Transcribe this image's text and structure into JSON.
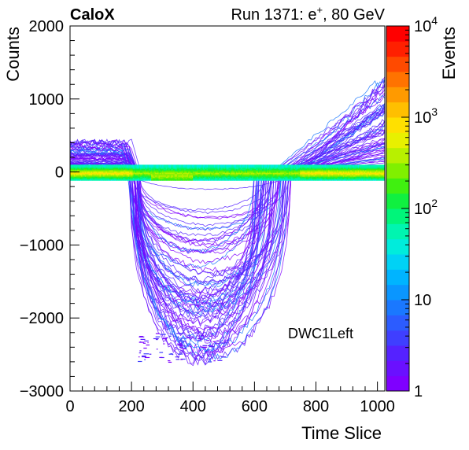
{
  "chart_data": {
    "type": "heatmap",
    "experiment_label": "CaloX",
    "run_label": "Run 1371: e",
    "run_label_sup": "+",
    "run_label_rest": ", 80 GeV",
    "xlabel": "Time Slice",
    "ylabel": "Counts",
    "zlabel": "Events",
    "annotation": "DWC1Left",
    "xlim": [
      0,
      1024
    ],
    "ylim": [
      -3000,
      2000
    ],
    "zlim": [
      1,
      10000
    ],
    "z_log_scale": true,
    "x_ticks": [
      "0",
      "200",
      "400",
      "600",
      "800",
      "1000"
    ],
    "x_tick_values": [
      0,
      200,
      400,
      600,
      800,
      1000
    ],
    "y_ticks": [
      "2000",
      "1000",
      "0",
      "−1000",
      "−2000",
      "−3000"
    ],
    "y_tick_values": [
      2000,
      1000,
      0,
      -1000,
      -2000,
      -3000
    ],
    "z_ticks": [
      {
        "base": "10",
        "exp": "4",
        "value": 10000
      },
      {
        "base": "10",
        "exp": "3",
        "value": 1000
      },
      {
        "base": "10",
        "exp": "2",
        "value": 100
      },
      {
        "base": "10",
        "exp": "",
        "value": 10
      },
      {
        "base": "1",
        "exp": "",
        "value": 1
      }
    ],
    "palette": [
      "#7f00ff",
      "#6a10ff",
      "#5522ff",
      "#3f3fff",
      "#2c5cff",
      "#1a78ff",
      "#0a96ff",
      "#00b4ff",
      "#00d2f5",
      "#00ecdc",
      "#00f5b0",
      "#00f57a",
      "#10f040",
      "#40f010",
      "#80f000",
      "#b8f000",
      "#e8f000",
      "#ffe000",
      "#ffbf00",
      "#ff9a00",
      "#ff7300",
      "#ff4a00",
      "#ff2000",
      "#ff0000"
    ],
    "pulse": {
      "baseline": 0,
      "start": 200,
      "end": 745,
      "min_amplitude": -2600,
      "pre_baseline_max": 500,
      "post_rise_max": 1400
    }
  }
}
